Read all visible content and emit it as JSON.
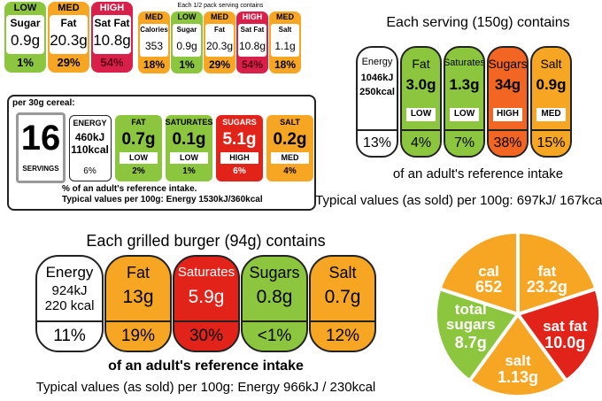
{
  "label_1": {
    "columns": [
      {
        "level": "LOW",
        "name": "Sugar",
        "amount": "0.9g",
        "percent": "1%",
        "color": "#8cc63e"
      },
      {
        "level": "MED",
        "name": "Fat",
        "amount": "20.3g",
        "percent": "29%",
        "color": "#f6a623"
      },
      {
        "level": "HIGH",
        "name": "Sat Fat",
        "amount": "10.8g",
        "percent": "54%",
        "color": "#d9204a"
      }
    ]
  },
  "label_2": {
    "heading": "Each 1/2 pack serving contains",
    "columns": [
      {
        "level": "MED",
        "name": "Calories",
        "amount": "353",
        "percent": "18%",
        "color": "#f6a623"
      },
      {
        "level": "LOW",
        "name": "Sugar",
        "amount": "0.9g",
        "percent": "1%",
        "color": "#8cc63e"
      },
      {
        "level": "MED",
        "name": "Fat",
        "amount": "20.3g",
        "percent": "29%",
        "color": "#f6a623"
      },
      {
        "level": "HIGH",
        "name": "Sat Fat",
        "amount": "10.8g",
        "percent": "54%",
        "color": "#d9204a"
      },
      {
        "level": "MED",
        "name": "Salt",
        "amount": "1.1g",
        "percent": "18%",
        "color": "#f6a623"
      }
    ]
  },
  "label_3": {
    "heading": "per 30g cereal:",
    "servings": {
      "number": "16",
      "label": "SERVINGS"
    },
    "energy": {
      "name": "ENERGY",
      "kj": "460kJ",
      "kcal": "110kcal",
      "percent": "6%"
    },
    "columns": [
      {
        "name": "FAT",
        "amount": "0.7g",
        "level": "LOW",
        "percent": "2%",
        "color": "#8cc63e"
      },
      {
        "name": "SATURATES",
        "amount": "0.1g",
        "level": "LOW",
        "percent": "1%",
        "color": "#8cc63e"
      },
      {
        "name": "SUGARS",
        "amount": "5.1g",
        "level": "HIGH",
        "percent": "6%",
        "color": "#e2231a"
      },
      {
        "name": "SALT",
        "amount": "0.2g",
        "level": "MED",
        "percent": "4%",
        "color": "#f6a623"
      }
    ],
    "footnote": "% of an adult's reference intake.",
    "typical": "Typical values per 100g: Energy 1530kJ/360kcal"
  },
  "label_4": {
    "title": "Each serving (150g) contains",
    "energy": {
      "name": "Energy",
      "kj": "1046kJ",
      "kcal": "250kcal",
      "percent": "13%"
    },
    "columns": [
      {
        "name": "Fat",
        "amount": "3.0g",
        "level": "LOW",
        "percent": "4%",
        "color": "#8cc63e"
      },
      {
        "name": "Saturates",
        "amount": "1.3g",
        "level": "LOW",
        "percent": "7%",
        "color": "#8cc63e"
      },
      {
        "name": "Sugars",
        "amount": "34g",
        "level": "HIGH",
        "percent": "38%",
        "color": "#f26522"
      },
      {
        "name": "Salt",
        "amount": "0.9g",
        "level": "MED",
        "percent": "15%",
        "color": "#f6a623"
      }
    ],
    "footnote": "of an adult's reference intake",
    "typical": "Typical values (as sold) per 100g: 697kJ/ 167kcal"
  },
  "label_5": {
    "title": "Each grilled burger (94g) contains",
    "energy": {
      "name": "Energy",
      "kj": "924kJ",
      "kcal": "220 kcal",
      "percent": "11%"
    },
    "columns": [
      {
        "name": "Fat",
        "amount": "13g",
        "percent": "19%",
        "color": "#f6a623"
      },
      {
        "name": "Saturates",
        "amount": "5.9g",
        "percent": "30%",
        "color": "#e2231a"
      },
      {
        "name": "Sugars",
        "amount": "0.8g",
        "percent": "<1%",
        "color": "#8cc63e"
      },
      {
        "name": "Salt",
        "amount": "0.7g",
        "percent": "12%",
        "color": "#f6a623"
      }
    ],
    "footnote": "of an adult's reference intake",
    "typical": "Typical values (as sold) per 100g: Energy 966kJ / 230kcal"
  },
  "label_6": {
    "segments": [
      {
        "name": "cal",
        "amount": "652",
        "color": "#f6a623"
      },
      {
        "name": "fat",
        "amount": "23.2g",
        "color": "#f6a623"
      },
      {
        "name": "sat fat",
        "amount": "10.0g",
        "color": "#e2231a"
      },
      {
        "name": "salt",
        "amount": "1.13g",
        "color": "#f6a623"
      },
      {
        "name": "total sugars",
        "amount": "8.7g",
        "color": "#8cc63e"
      }
    ]
  }
}
